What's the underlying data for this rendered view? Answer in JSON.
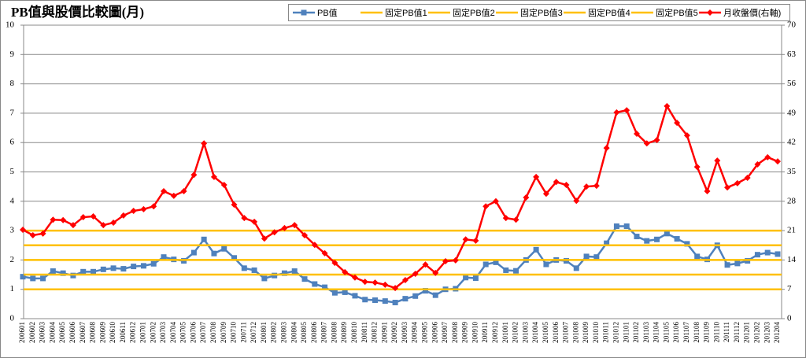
{
  "chart_data": {
    "type": "line",
    "title": "PB值與股價比較圖(月)",
    "categories": [
      "200601",
      "200602",
      "200603",
      "200604",
      "200605",
      "200606",
      "200607",
      "200608",
      "200609",
      "200610",
      "200611",
      "200612",
      "200701",
      "200702",
      "200703",
      "200704",
      "200705",
      "200706",
      "200707",
      "200708",
      "200709",
      "200710",
      "200711",
      "200712",
      "200801",
      "200802",
      "200803",
      "200804",
      "200805",
      "200806",
      "200807",
      "200808",
      "200809",
      "200810",
      "200811",
      "200812",
      "200901",
      "200902",
      "200903",
      "200904",
      "200905",
      "200906",
      "200907",
      "200908",
      "200909",
      "200910",
      "200911",
      "200912",
      "201001",
      "201002",
      "201003",
      "201004",
      "201005",
      "201006",
      "201007",
      "201008",
      "201009",
      "201010",
      "201011",
      "201012",
      "201101",
      "201102",
      "201103",
      "201104",
      "201105",
      "201106",
      "201107",
      "201108",
      "201109",
      "201110",
      "201111",
      "201112",
      "201201",
      "201202",
      "201203",
      "201204"
    ],
    "series": [
      {
        "name": "PB值",
        "color": "#4f81bd",
        "marker": "square",
        "values": [
          1.43,
          1.37,
          1.37,
          1.62,
          1.55,
          1.47,
          1.6,
          1.6,
          1.68,
          1.72,
          1.7,
          1.78,
          1.8,
          1.87,
          2.1,
          2.02,
          1.97,
          2.25,
          2.7,
          2.22,
          2.38,
          2.07,
          1.72,
          1.65,
          1.37,
          1.47,
          1.55,
          1.62,
          1.35,
          1.18,
          1.07,
          0.88,
          0.9,
          0.78,
          0.65,
          0.63,
          0.6,
          0.55,
          0.68,
          0.77,
          0.95,
          0.8,
          1.0,
          1.02,
          1.4,
          1.38,
          1.85,
          1.92,
          1.65,
          1.63,
          2.0,
          2.35,
          1.85,
          2.0,
          1.97,
          1.72,
          2.12,
          2.1,
          2.57,
          3.15,
          3.15,
          2.8,
          2.65,
          2.7,
          2.9,
          2.72,
          2.55,
          2.12,
          2.02,
          2.5,
          1.83,
          1.88,
          1.97,
          2.18,
          2.25,
          2.2
        ]
      },
      {
        "name": "固定PB值1",
        "color": "#ffc000",
        "value": 1
      },
      {
        "name": "固定PB值2",
        "color": "#ffc000",
        "value": 1.5
      },
      {
        "name": "固定PB值3",
        "color": "#ffc000",
        "value": 2
      },
      {
        "name": "固定PB值4",
        "color": "#ffc000",
        "value": 2.5
      },
      {
        "name": "固定PB值5",
        "color": "#ffc000",
        "value": 3
      },
      {
        "name": "月收盤價(右軸)",
        "color": "#ff0000",
        "marker": "diamond",
        "axis": "y2",
        "values": [
          21.2,
          19.9,
          20.3,
          23.6,
          23.5,
          22.3,
          24.2,
          24.4,
          22.3,
          22.9,
          24.6,
          25.7,
          26.1,
          26.8,
          30.4,
          29.3,
          30.4,
          34.3,
          41.8,
          33.8,
          31.9,
          27.2,
          24.0,
          23.1,
          19.1,
          20.6,
          21.6,
          22.3,
          19.9,
          17.6,
          15.6,
          13.3,
          11.1,
          9.8,
          8.8,
          8.6,
          8.1,
          7.3,
          9.2,
          10.7,
          12.9,
          10.9,
          13.7,
          13.9,
          18.9,
          18.6,
          26.8,
          28.0,
          24.0,
          23.6,
          28.9,
          33.8,
          29.8,
          32.6,
          31.9,
          28.1,
          31.5,
          31.7,
          40.7,
          49.2,
          49.7,
          44.1,
          41.8,
          42.6,
          50.7,
          46.7,
          43.7,
          36.2,
          30.4,
          37.7,
          31.3,
          32.3,
          33.6,
          36.8,
          38.5,
          37.5
        ]
      }
    ],
    "ylim": [
      0,
      10
    ],
    "yticks": [
      0,
      1,
      2,
      3,
      4,
      5,
      6,
      7,
      8,
      9,
      10
    ],
    "y2lim": [
      0,
      70
    ],
    "y2ticks": [
      0,
      7,
      14,
      21,
      28,
      35,
      42,
      49,
      56,
      63,
      70
    ],
    "grid": true,
    "legend": "top"
  }
}
